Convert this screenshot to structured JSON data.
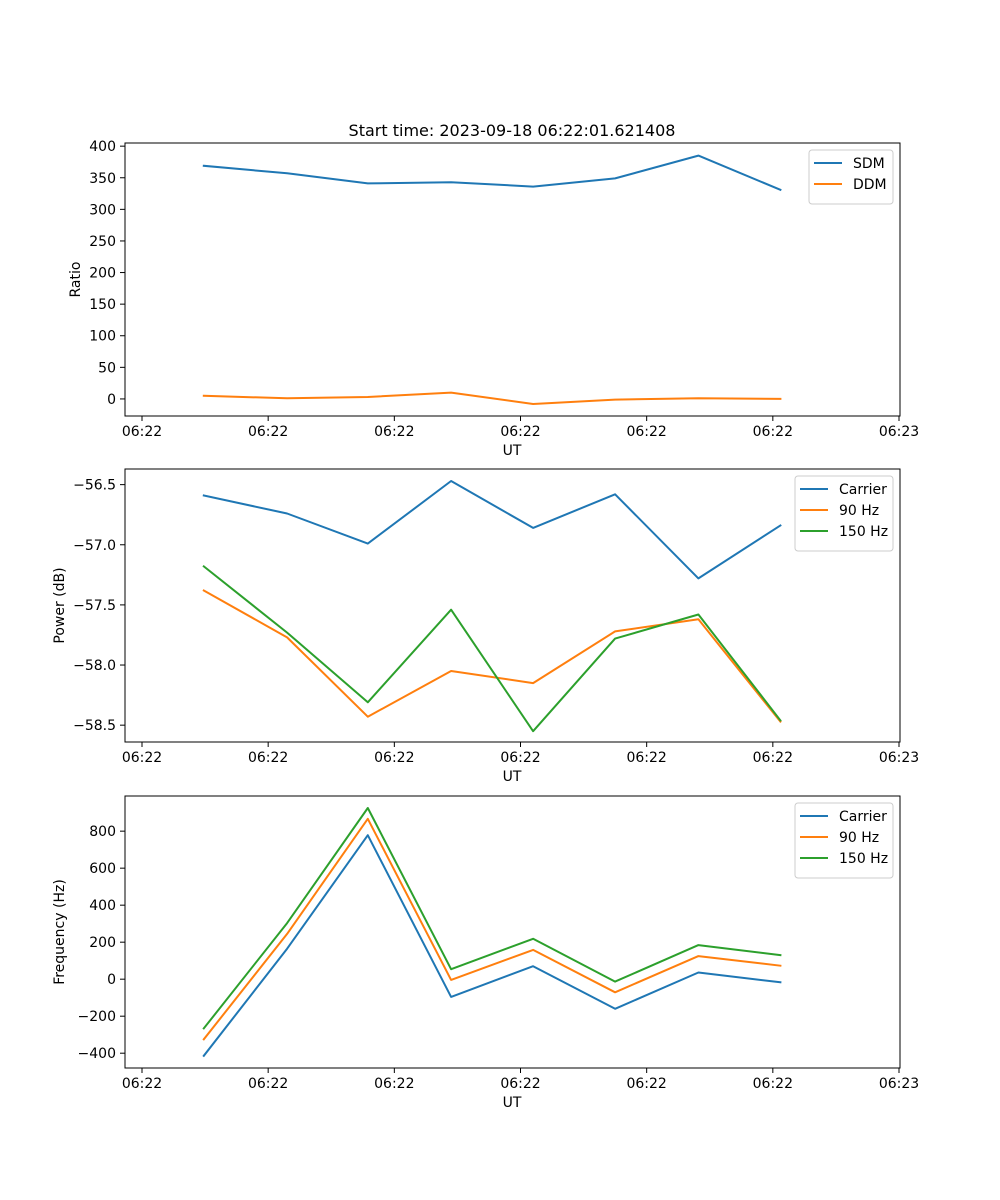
{
  "figure_title": "Start time: 2023-09-18 06:22:01.621408",
  "chart_data": [
    {
      "type": "line",
      "title": "Start time: 2023-09-18 06:22:01.621408",
      "xlabel": "UT",
      "ylabel": "Ratio",
      "xlim": [
        0,
        6
      ],
      "ylim": [
        -27,
        405
      ],
      "x_ticks": [
        {
          "value": 0,
          "label": "06:22"
        },
        {
          "value": 1,
          "label": "06:22"
        },
        {
          "value": 2,
          "label": "06:22"
        },
        {
          "value": 3,
          "label": "06:22"
        },
        {
          "value": 4,
          "label": "06:22"
        },
        {
          "value": 5,
          "label": "06:22"
        },
        {
          "value": 6,
          "label": "06:23"
        }
      ],
      "y_ticks": [
        {
          "value": 0,
          "label": "0"
        },
        {
          "value": 50,
          "label": "50"
        },
        {
          "value": 100,
          "label": "100"
        },
        {
          "value": 150,
          "label": "150"
        },
        {
          "value": 200,
          "label": "200"
        },
        {
          "value": 250,
          "label": "250"
        },
        {
          "value": 300,
          "label": "300"
        },
        {
          "value": 350,
          "label": "350"
        },
        {
          "value": 400,
          "label": "400"
        }
      ],
      "x": [
        0.49,
        1.15,
        1.79,
        2.45,
        3.1,
        3.75,
        4.41,
        5.06
      ],
      "legend_location": "upper right",
      "series": [
        {
          "name": "SDM",
          "color": "#1f77b4",
          "values": [
            369,
            357,
            341,
            343,
            336,
            349,
            385,
            331
          ]
        },
        {
          "name": "DDM",
          "color": "#ff7f0e",
          "values": [
            5,
            1,
            3,
            10,
            -8,
            -1,
            1,
            0
          ]
        }
      ]
    },
    {
      "type": "line",
      "title": "",
      "xlabel": "UT",
      "ylabel": "Power (dB)",
      "xlim": [
        0,
        6
      ],
      "ylim": [
        -58.64,
        -56.37
      ],
      "x_ticks": [
        {
          "value": 0,
          "label": "06:22"
        },
        {
          "value": 1,
          "label": "06:22"
        },
        {
          "value": 2,
          "label": "06:22"
        },
        {
          "value": 3,
          "label": "06:22"
        },
        {
          "value": 4,
          "label": "06:22"
        },
        {
          "value": 5,
          "label": "06:22"
        },
        {
          "value": 6,
          "label": "06:23"
        }
      ],
      "y_ticks": [
        {
          "value": -56.5,
          "label": "−56.5"
        },
        {
          "value": -57.0,
          "label": "−57.0"
        },
        {
          "value": -57.5,
          "label": "−57.5"
        },
        {
          "value": -58.0,
          "label": "−58.0"
        },
        {
          "value": -58.5,
          "label": "−58.5"
        }
      ],
      "x": [
        0.49,
        1.15,
        1.79,
        2.45,
        3.1,
        3.75,
        4.41,
        5.06
      ],
      "legend_location": "upper right",
      "series": [
        {
          "name": "Carrier",
          "color": "#1f77b4",
          "values": [
            -56.59,
            -56.74,
            -56.99,
            -56.47,
            -56.86,
            -56.58,
            -57.28,
            -56.84
          ]
        },
        {
          "name": "90 Hz",
          "color": "#ff7f0e",
          "values": [
            -57.38,
            -57.77,
            -58.43,
            -58.05,
            -58.15,
            -57.72,
            -57.62,
            -58.47
          ]
        },
        {
          "name": "150 Hz",
          "color": "#2ca02c",
          "values": [
            -57.18,
            -57.73,
            -58.31,
            -57.54,
            -58.55,
            -57.78,
            -57.58,
            -58.46
          ]
        }
      ]
    },
    {
      "type": "line",
      "title": "",
      "xlabel": "UT",
      "ylabel": "Frequency (Hz)",
      "xlim": [
        0,
        6
      ],
      "ylim": [
        -480,
        990
      ],
      "x_ticks": [
        {
          "value": 0,
          "label": "06:22"
        },
        {
          "value": 1,
          "label": "06:22"
        },
        {
          "value": 2,
          "label": "06:22"
        },
        {
          "value": 3,
          "label": "06:22"
        },
        {
          "value": 4,
          "label": "06:22"
        },
        {
          "value": 5,
          "label": "06:22"
        },
        {
          "value": 6,
          "label": "06:23"
        }
      ],
      "y_ticks": [
        {
          "value": -400,
          "label": "−400"
        },
        {
          "value": -200,
          "label": "−200"
        },
        {
          "value": 0,
          "label": "0"
        },
        {
          "value": 200,
          "label": "200"
        },
        {
          "value": 400,
          "label": "400"
        },
        {
          "value": 600,
          "label": "600"
        },
        {
          "value": 800,
          "label": "800"
        }
      ],
      "x": [
        0.49,
        1.15,
        1.79,
        2.45,
        3.1,
        3.75,
        4.41,
        5.06
      ],
      "legend_location": "upper right",
      "series": [
        {
          "name": "Carrier",
          "color": "#1f77b4",
          "values": [
            -414,
            165,
            778,
            -96,
            70,
            -160,
            36,
            -17
          ]
        },
        {
          "name": "90 Hz",
          "color": "#ff7f0e",
          "values": [
            -325,
            245,
            867,
            -4,
            158,
            -71,
            125,
            73
          ]
        },
        {
          "name": "150 Hz",
          "color": "#2ca02c",
          "values": [
            -266,
            303,
            925,
            54,
            218,
            -13,
            184,
            130
          ]
        }
      ]
    }
  ]
}
